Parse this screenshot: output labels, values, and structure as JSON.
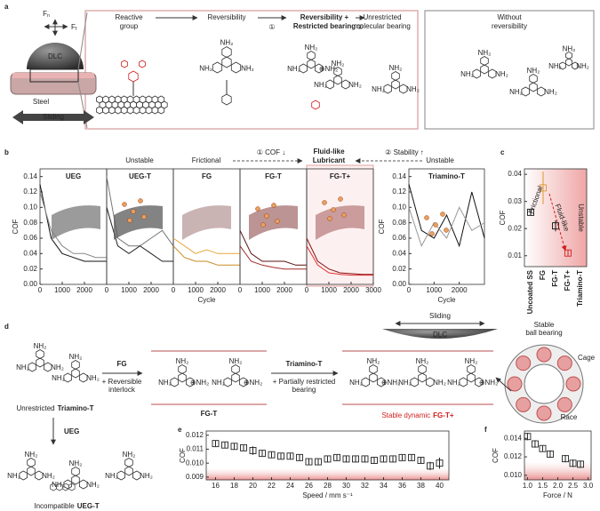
{
  "figure": {
    "labels": [
      "a",
      "b",
      "c",
      "d",
      "e",
      "f"
    ],
    "a": {
      "normal_force": [
        "F",
        "n"
      ],
      "friction_force": [
        "F",
        "f"
      ],
      "dlc": "DLC",
      "steel": "Steel",
      "sliding": "Sliding",
      "steps": [
        [
          "Reactive",
          "group"
        ],
        [
          "Reversibility"
        ],
        [
          "Reversibility +",
          "Restricted bearing"
        ],
        [
          "Unrestricted",
          "molecular bearing"
        ]
      ],
      "step_marks": [
        "①",
        "②"
      ],
      "without": [
        "Without",
        "reversibility"
      ]
    },
    "b": {
      "unstable_left": "Unstable",
      "frictional": "Frictional",
      "cof_down": "① COF ↓",
      "fluid": [
        "Fluid-like",
        "Lubricant"
      ],
      "stability_up": "② Stability ↑",
      "unstable_right": "Unstable"
    },
    "d": {
      "unrestricted": "Unrestricted",
      "triamino": "Triamino-T",
      "fg": "FG",
      "reversible": [
        "+ Reversible",
        "interlock"
      ],
      "fgt": "FG-T",
      "triamino2": "Triamino-T",
      "partial": [
        "+ Partially restricted",
        "bearing"
      ],
      "sliding": "Sliding",
      "dlc": "DLC",
      "stable_dynamic": "Stable dynamic",
      "fgtplus": "FG-T+",
      "ball": [
        "Stable",
        "ball bearing"
      ],
      "cage": "Cage",
      "race": "Race",
      "ueg": "UEG",
      "incompatible": "Incompatible",
      "uegt": "UEG-T"
    },
    "chem": {
      "amine": "NH₂",
      "ammonium": "⊕NH₂"
    }
  },
  "chart_data": [
    {
      "type": "line",
      "title": "UEG",
      "title_color": "#111",
      "ylabel": "COF",
      "x": [
        0,
        500,
        1000,
        1500,
        2000,
        2500,
        3000
      ],
      "series": [
        {
          "color": "#111",
          "values": [
            0.13,
            0.06,
            0.04,
            0.035,
            0.03,
            0.03,
            0.03
          ]
        },
        {
          "color": "#888",
          "values": [
            0.12,
            0.07,
            0.05,
            0.04,
            0.04,
            0.035,
            0.035
          ]
        }
      ],
      "xlim": [
        0,
        3000
      ],
      "xticks": [
        0,
        1000,
        2000
      ],
      "ylim": [
        0,
        0.15
      ],
      "yticks": [
        {
          "value": 0,
          "label": "0.00"
        },
        0.02,
        0.04,
        0.06,
        0.08,
        {
          "value": 0.1,
          "label": "0.10"
        },
        0.12,
        0.14
      ]
    },
    {
      "type": "line",
      "title": "UEG-T",
      "title_color": "#111",
      "x": [
        0,
        500,
        1000,
        1500,
        2000,
        2500,
        3000
      ],
      "series": [
        {
          "color": "#777",
          "values": [
            0.14,
            0.06,
            0.05,
            0.05,
            0.06,
            0.07,
            0.05
          ]
        },
        {
          "color": "#222",
          "values": [
            0.1,
            0.05,
            0.04,
            0.05,
            0.04,
            0.03,
            0.03
          ]
        }
      ],
      "xlim": [
        0,
        3000
      ],
      "xticks": [
        0,
        1000,
        2000
      ],
      "ylim": [
        0,
        0.15
      ]
    },
    {
      "type": "line",
      "title": "FG",
      "title_color": "#e0962a",
      "xlabel": "Cycle",
      "x": [
        0,
        500,
        1000,
        1500,
        2000,
        2500,
        3000
      ],
      "series": [
        {
          "color": "#e8a83a",
          "values": [
            0.06,
            0.05,
            0.04,
            0.045,
            0.04,
            0.04,
            0.04
          ]
        },
        {
          "color": "#c98a20",
          "values": [
            0.05,
            0.035,
            0.03,
            0.03,
            0.025,
            0.025,
            0.025
          ]
        }
      ],
      "xlim": [
        0,
        3000
      ],
      "xticks": [
        0,
        1000,
        2000
      ],
      "ylim": [
        0,
        0.15
      ]
    },
    {
      "type": "line",
      "title": "FG-T",
      "title_color": "#8a1a1a",
      "x": [
        0,
        500,
        1000,
        1500,
        2000,
        2500,
        3000
      ],
      "series": [
        {
          "color": "#5a0f0f",
          "values": [
            0.07,
            0.04,
            0.03,
            0.03,
            0.03,
            0.025,
            0.025
          ]
        },
        {
          "color": "#a52a2a",
          "values": [
            0.05,
            0.03,
            0.025,
            0.022,
            0.02,
            0.02,
            0.02
          ]
        }
      ],
      "xlim": [
        0,
        3000
      ],
      "xticks": [
        0,
        1000,
        2000
      ],
      "ylim": [
        0,
        0.15
      ]
    },
    {
      "type": "line",
      "title": "FG-T+",
      "title_color": "#d0201e",
      "x": [
        0,
        500,
        1000,
        1500,
        2000,
        2500,
        3000
      ],
      "series": [
        {
          "color": "#e03030",
          "values": [
            0.05,
            0.025,
            0.015,
            0.013,
            0.012,
            0.012,
            0.012
          ]
        },
        {
          "color": "#8a1515",
          "values": [
            0.06,
            0.03,
            0.02,
            0.015,
            0.014,
            0.013,
            0.013
          ]
        }
      ],
      "xlim": [
        0,
        3000
      ],
      "xticks": [
        0,
        1000,
        2000,
        3000
      ],
      "ylim": [
        0,
        0.15
      ]
    },
    {
      "type": "line",
      "title": "Triamino-T",
      "title_color": "#111",
      "ylabel": "COF",
      "xlabel": "Cycle",
      "x": [
        0,
        500,
        1000,
        1500,
        2000,
        2500,
        3000
      ],
      "series": [
        {
          "color": "#111",
          "values": [
            0.13,
            0.07,
            0.06,
            0.09,
            0.05,
            0.12,
            0.06
          ]
        },
        {
          "color": "#999",
          "values": [
            0.1,
            0.05,
            0.08,
            0.06,
            0.1,
            0.07,
            0.08
          ]
        }
      ],
      "xlim": [
        0,
        3000
      ],
      "xticks": [
        0,
        1000,
        2000
      ],
      "ylim": [
        0,
        0.15
      ],
      "yticks": [
        {
          "value": 0,
          "label": "0.00"
        },
        0.02,
        0.04,
        0.06,
        0.08,
        {
          "value": 0.1,
          "label": "0.10"
        },
        0.12,
        0.14
      ]
    },
    {
      "type": "scatter",
      "ylabel": "COF",
      "categories": [
        "Uncoated SS",
        "FG",
        "FG-T",
        "FG-T+",
        "Triamino-T"
      ],
      "category_colors": [
        "#111",
        "#e0962a",
        "#111",
        "#d0201e",
        "#111"
      ],
      "values": [
        0.026,
        0.035,
        0.021,
        0.011,
        null
      ],
      "errors": [
        0.001,
        0.006,
        0.002,
        0.001,
        null
      ],
      "annotations": [
        "Frictional",
        "Fluid-like",
        "Unstable"
      ],
      "ylim": [
        0.006,
        0.042
      ],
      "yticks": [
        0.01,
        0.02,
        0.03,
        0.04
      ]
    },
    {
      "type": "scatter",
      "xlabel": "Speed / mm s⁻¹",
      "ylabel": "COF",
      "x": [
        16,
        17,
        18,
        19,
        20,
        21,
        22,
        23,
        24,
        25,
        26,
        27,
        28,
        29,
        30,
        31,
        32,
        33,
        34,
        35,
        36,
        37,
        38,
        39,
        40
      ],
      "values": [
        0.0114,
        0.0113,
        0.0112,
        0.0111,
        0.0109,
        0.0107,
        0.0106,
        0.0105,
        0.0105,
        0.0104,
        0.0101,
        0.0101,
        0.0103,
        0.0104,
        0.0103,
        0.0103,
        0.0103,
        0.0102,
        0.0103,
        0.0103,
        0.0104,
        0.0104,
        0.0102,
        0.0098,
        0.01
      ],
      "errors": [
        0.0002,
        0.0002,
        0.0002,
        0.0002,
        0.0003,
        0.0002,
        0.0002,
        0.0002,
        0.0002,
        0.0002,
        0.0002,
        0.0002,
        0.0002,
        0.0002,
        0.0002,
        0.0002,
        0.0002,
        0.0002,
        0.0002,
        0.0002,
        0.0002,
        0.0002,
        0.0002,
        0.0003,
        0.0004
      ],
      "xlim": [
        15,
        41
      ],
      "xticks": [
        16,
        18,
        20,
        22,
        24,
        26,
        28,
        30,
        32,
        34,
        36,
        38,
        40
      ],
      "ylim": [
        0.0088,
        0.0123
      ],
      "yticks": [
        0.009,
        {
          "value": 0.01,
          "label": "0.010"
        },
        0.011,
        0.012
      ]
    },
    {
      "type": "scatter",
      "xlabel": "Force / N",
      "ylabel": "COF",
      "x": [
        1.0,
        1.25,
        1.5,
        1.75,
        2.25,
        2.5,
        2.75
      ],
      "values": [
        0.0142,
        0.0134,
        0.0129,
        0.0123,
        0.0118,
        0.0113,
        0.0112
      ],
      "errors": [
        0.0004,
        0.0004,
        0.0003,
        0.0004,
        0.0004,
        0.0004,
        0.0004
      ],
      "xlim": [
        0.9,
        3.1
      ],
      "xticks": [
        {
          "value": 1,
          "label": "1.0"
        },
        1.5,
        {
          "value": 2,
          "label": "2.0"
        },
        2.5,
        {
          "value": 3,
          "label": "3.0"
        }
      ],
      "ylim": [
        0.0095,
        0.0148
      ],
      "yticks": [
        {
          "value": 0.01,
          "label": "0.010"
        },
        0.012,
        0.014
      ]
    }
  ]
}
